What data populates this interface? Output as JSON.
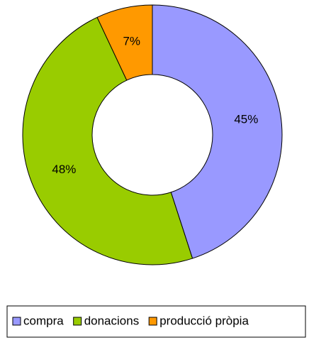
{
  "chart_data": {
    "type": "donut",
    "categories": [
      "compra",
      "donacions",
      "producció pròpia"
    ],
    "values": [
      45,
      48,
      7
    ],
    "value_labels": [
      "45%",
      "48%",
      "7%"
    ],
    "colors": [
      "#9999ff",
      "#99cc00",
      "#ff9900"
    ],
    "legend": "bottom"
  }
}
